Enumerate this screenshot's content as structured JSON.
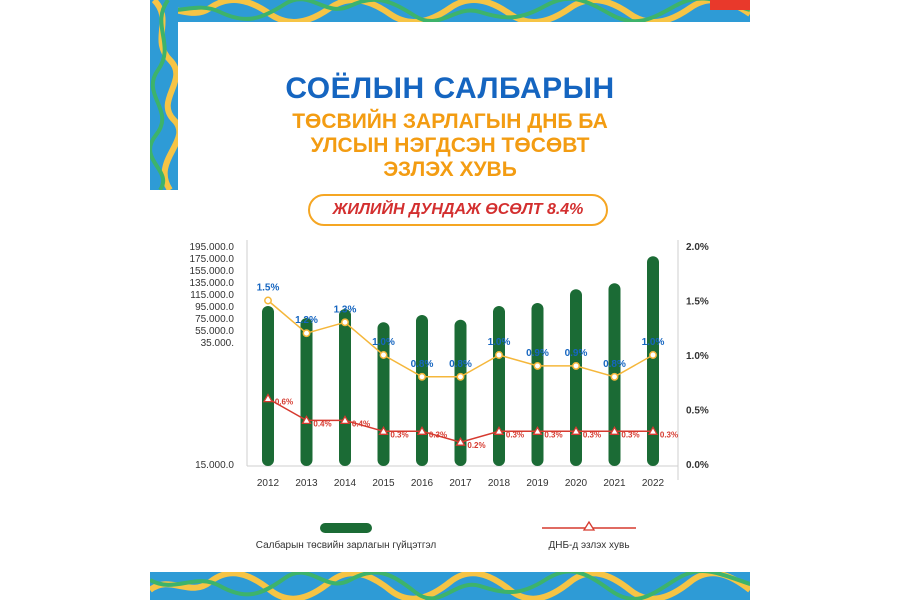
{
  "header": {
    "title": "СОЁЛЫН САЛБАРЫН",
    "subtitle_lines": [
      "ТӨСВИЙН ЗАРЛАГЫН ДНБ БА",
      "УЛСЫН НЭГДСЭН ТӨСӨВТ",
      "ЭЗЛЭХ ХУВЬ"
    ],
    "growth_badge": "ЖИЛИЙН ДУНДАЖ ӨСӨЛТ 8.4%"
  },
  "colors": {
    "bar": "#1b6b35",
    "yellow_line": "#f5b73b",
    "red_line": "#d63a2f",
    "label_blue": "#1565c0",
    "title_blue": "#1565c0",
    "title_orange": "#f39c12"
  },
  "chart_data": {
    "type": "bar",
    "categories": [
      "2012",
      "2013",
      "2014",
      "2015",
      "2016",
      "2017",
      "2018",
      "2019",
      "2020",
      "2021",
      "2022"
    ],
    "series": [
      {
        "name": "Салбарын төсвийн зарлагын гүйцэтгэл",
        "type": "bar",
        "axis": "left",
        "values": [
          95000,
          75000,
          90000,
          68000,
          80000,
          72000,
          95000,
          100000,
          123000,
          133000,
          178000
        ]
      },
      {
        "name": "",
        "type": "line",
        "axis": "right",
        "values": [
          1.5,
          1.2,
          1.3,
          1.0,
          0.8,
          0.8,
          1.0,
          0.9,
          0.9,
          0.8,
          1.0
        ],
        "labels": [
          "1.5%",
          "1.2%",
          "1.3%",
          "1.0%",
          "0.8%",
          "0.8%",
          "1.0%",
          "0.9%",
          "0.9%",
          "0.8%",
          "1.0%"
        ]
      },
      {
        "name": "ДНБ-д эзлэх хувь",
        "type": "line",
        "axis": "right",
        "values": [
          0.6,
          0.4,
          0.4,
          0.3,
          0.3,
          0.2,
          0.3,
          0.3,
          0.3,
          0.3,
          0.3
        ],
        "labels": [
          "0.6%",
          "0.4%",
          "0.4%",
          "0.3%",
          "0.3%",
          "0.2%",
          "0.3%",
          "0.3%",
          "0.3%",
          "0.3%",
          "0.3%"
        ]
      }
    ],
    "left_axis": {
      "ticks": [
        "195.000.0",
        "175.000.0",
        "155.000.0",
        "135.000.0",
        "115.000.0",
        "95.000.0",
        "75.000.0",
        "55.000.0",
        "35.000.",
        "15.000.0"
      ]
    },
    "right_axis": {
      "ticks": [
        "2.0%",
        "1.5%",
        "1.0%",
        "0.5%",
        "0.0%"
      ],
      "tick_values": [
        2.0,
        1.5,
        1.0,
        0.5,
        0.0
      ],
      "ylim": [
        0,
        2.0
      ]
    },
    "legend": {
      "placement": "bottom",
      "items": [
        "Салбарын төсвийн зарлагын гүйцэтгэл",
        "ДНБ-д эзлэх хувь"
      ]
    }
  }
}
